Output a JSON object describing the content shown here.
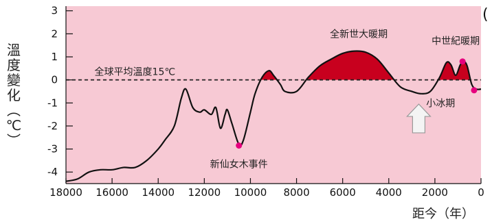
{
  "chart_data": {
    "type": "line",
    "title": "",
    "xlabel": "距今（年）",
    "ylabel": "溫度變化（℃）",
    "xlim": [
      18000,
      0
    ],
    "ylim": [
      -4.5,
      3.2
    ],
    "x_ticks": [
      18000,
      16000,
      14000,
      12000,
      10000,
      8000,
      6000,
      4000,
      2000,
      0
    ],
    "y_ticks": [
      3,
      2,
      1,
      0,
      -1,
      -2,
      -3,
      -4
    ],
    "reference_line": {
      "y": 0,
      "label": "全球平均溫度15℃"
    },
    "series": [
      {
        "x": [
          18000,
          17500,
          17000,
          16500,
          16000,
          15500,
          15000,
          14500,
          14000,
          13700,
          13300,
          13000,
          12800,
          12500,
          12200,
          12000,
          11700,
          11500,
          11300,
          11100,
          11000,
          10800,
          10500,
          10300,
          10000,
          9800,
          9500,
          9200,
          9000,
          8700,
          8500,
          8000,
          7500,
          7000,
          6500,
          6000,
          5500,
          5000,
          4500,
          4000,
          3500,
          3000,
          2600,
          2200,
          1800,
          1500,
          1300,
          1100,
          900,
          750,
          600,
          400,
          200,
          0
        ],
        "y": [
          -4.4,
          -4.3,
          -4.0,
          -3.9,
          -3.9,
          -3.8,
          -3.8,
          -3.5,
          -3.0,
          -2.6,
          -2.0,
          -0.8,
          -0.4,
          -1.2,
          -1.4,
          -1.3,
          -1.5,
          -1.2,
          -2.1,
          -1.5,
          -1.3,
          -1.9,
          -2.8,
          -2.6,
          -1.4,
          -0.6,
          0.1,
          0.4,
          0.2,
          -0.2,
          -0.5,
          -0.5,
          0.1,
          0.6,
          0.9,
          1.15,
          1.25,
          1.2,
          0.9,
          0.3,
          -0.3,
          -0.5,
          -0.6,
          -0.5,
          0.1,
          0.75,
          0.65,
          0.2,
          0.65,
          0.8,
          0.6,
          -0.2,
          -0.4,
          -0.4
        ]
      }
    ],
    "points": [
      {
        "x": 10500,
        "y": -2.85,
        "color": "#e6007e"
      },
      {
        "x": 800,
        "y": 0.8,
        "color": "#e6007e"
      },
      {
        "x": 300,
        "y": -0.45,
        "color": "#e6007e"
      }
    ],
    "annotations": [
      {
        "text": "新仙女木事件",
        "x": 10500,
        "y": -3.8
      },
      {
        "text": "全新世大暖期",
        "x": 5300,
        "y": 1.85
      },
      {
        "text": "中世紀暖期",
        "x": 1100,
        "y": 1.55
      },
      {
        "text": "小冰期",
        "x": 1750,
        "y": -1.15
      }
    ],
    "corner_mark": "(",
    "colors": {
      "plot_background": "#f7c9d4",
      "line": "#111111",
      "warm_fill": "#c8001e",
      "marker": "#e6007e",
      "arrow_fill": "#f4f4f4",
      "arrow_stroke": "#999999"
    }
  }
}
